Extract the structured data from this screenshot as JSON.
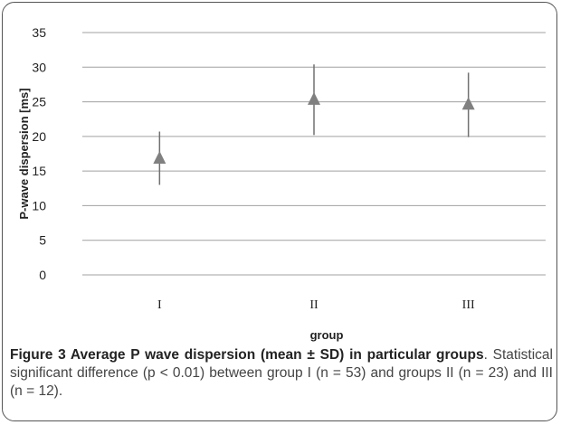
{
  "chart_data": {
    "type": "scatter",
    "title": "",
    "xlabel": "group",
    "ylabel": "P-wave dispersion [ms]",
    "categories": [
      "I",
      "II",
      "III"
    ],
    "ylim": [
      0,
      35
    ],
    "yticks": [
      "0",
      "5",
      "10",
      "15",
      "20",
      "25",
      "30",
      "35"
    ],
    "grid": true,
    "marker": "triangle",
    "series": [
      {
        "values": [
          16.8,
          25.3,
          24.6
        ],
        "error_low": [
          13.0,
          20.2,
          19.9
        ],
        "error_high": [
          20.7,
          30.4,
          29.2
        ]
      }
    ]
  },
  "caption": {
    "lead": "Figure 3 Average P wave dispersion (mean ± SD) in particular",
    "lead2": "groups",
    "rest": ". Statistical significant difference (p < 0.01) between group I (n = 53) and groups II (n = 23) and III (n = 12)."
  },
  "colors": {
    "marker": "#808080",
    "error_bar": "#707070",
    "grid": "#a0a0a0",
    "text": "#222222"
  }
}
